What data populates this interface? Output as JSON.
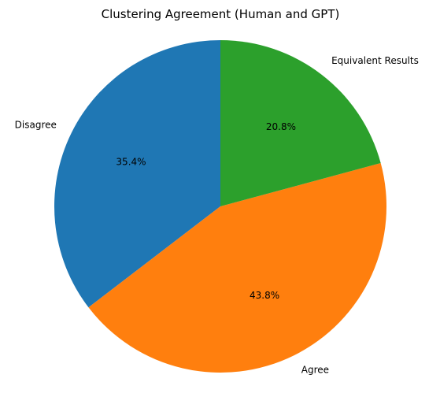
{
  "chart_data": {
    "type": "pie",
    "title": "Clustering Agreement (Human and GPT)",
    "categories": [
      "Disagree",
      "Agree",
      "Equivalent Results"
    ],
    "values": [
      35.4,
      43.8,
      20.8
    ],
    "percent_labels": [
      "35.4%",
      "43.8%",
      "20.8%"
    ],
    "colors": [
      "#1f77b4",
      "#ff7f0e",
      "#2ca02c"
    ],
    "start_angle_deg": 90,
    "direction": "counterclockwise",
    "legend": "none"
  }
}
